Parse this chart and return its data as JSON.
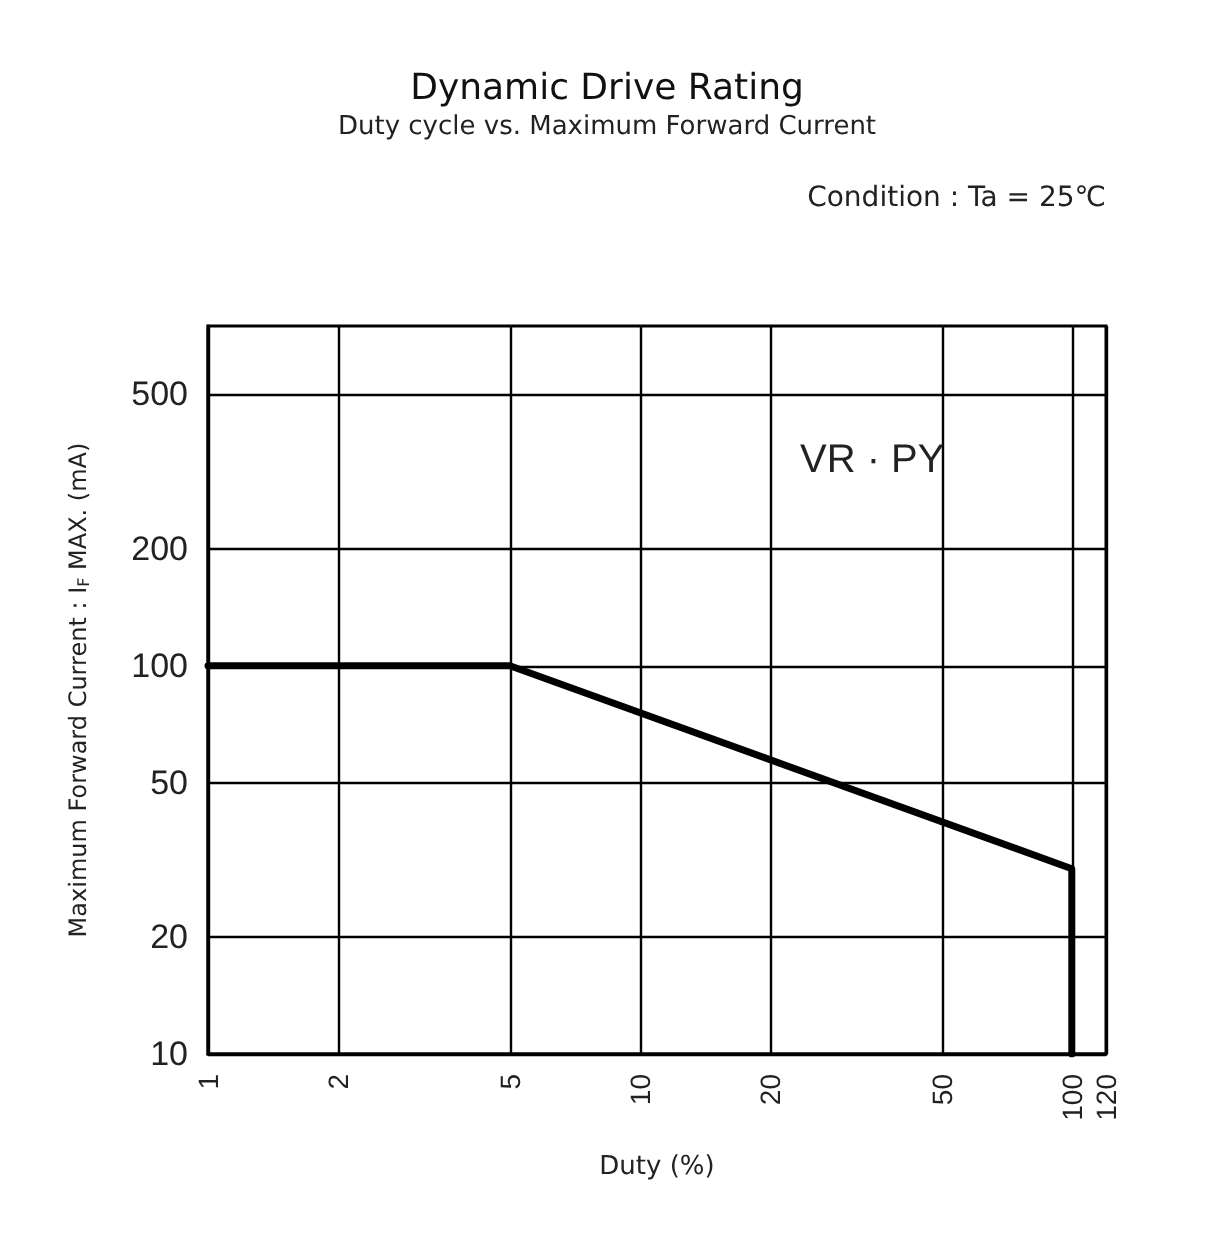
{
  "chart_data": {
    "type": "line",
    "title": "Dynamic Drive Rating",
    "subtitle": "Duty cycle vs. Maximum Forward Current",
    "annotations": [
      "Condition : Ta = 25℃",
      "VR · PY"
    ],
    "xlabel": "Duty (%)",
    "ylabel": "Maximum Forward Current : I$_{F}$ MAX. (mA)",
    "x": [
      1,
      5,
      100,
      100
    ],
    "series": [
      {
        "color": "#000000",
        "values": [
          100,
          100,
          30,
          10
        ]
      }
    ],
    "log": "xy",
    "xlim": [
      1,
      120
    ],
    "xticks": [
      1,
      2,
      5,
      10,
      20,
      50,
      100,
      120
    ],
    "ylim": [
      10,
      750
    ],
    "yticks": [
      10,
      20,
      50,
      100,
      200,
      500
    ],
    "grid": true,
    "marker": "none",
    "line_style": "solid"
  }
}
